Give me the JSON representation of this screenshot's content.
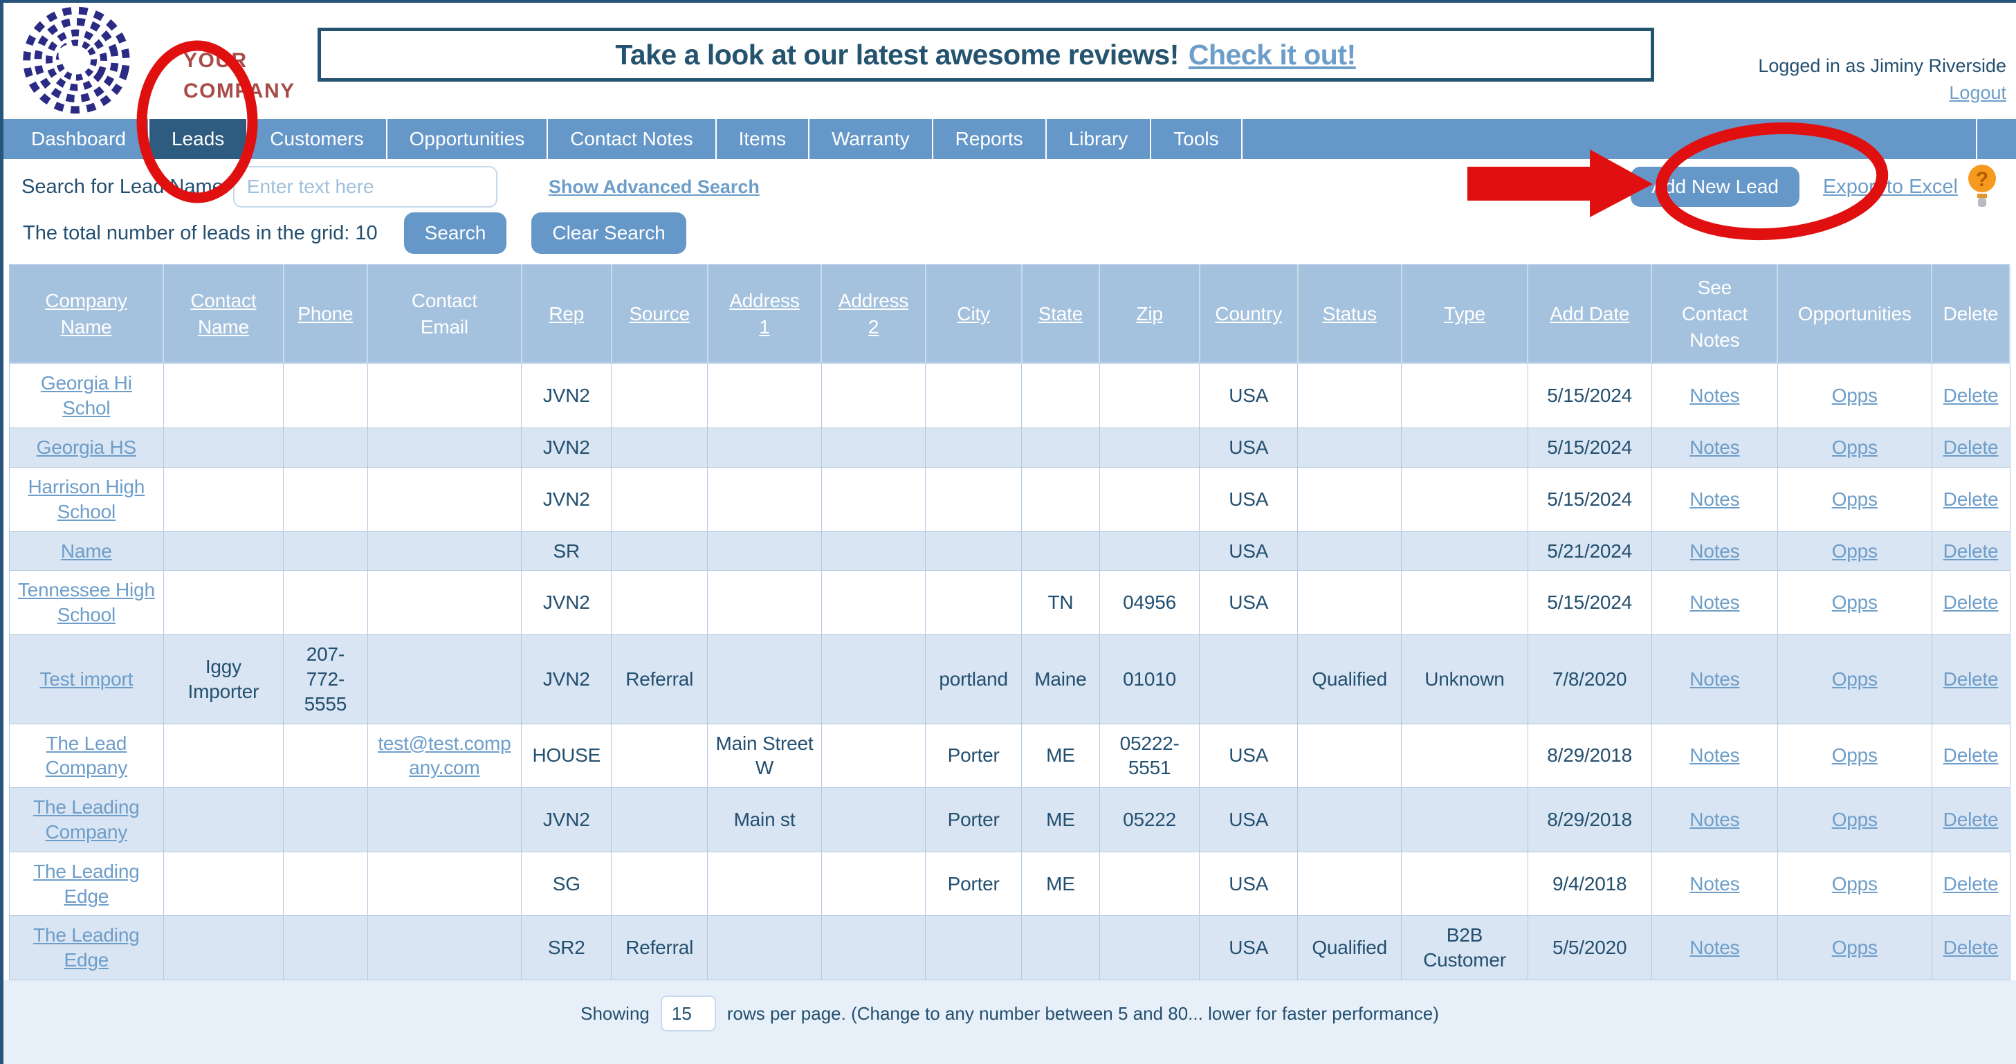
{
  "page": {
    "logo": {
      "company_line1": "YOUR",
      "company_line2": "COMPANY"
    },
    "banner": {
      "text": "Take a look at our latest awesome reviews!",
      "link_text": "Check it out!"
    },
    "account": {
      "logged_in_text": "Logged in as Jiminy Riverside",
      "logout_label": "Logout"
    }
  },
  "nav": {
    "tabs": [
      {
        "label": "Dashboard",
        "active": false
      },
      {
        "label": "Leads",
        "active": true
      },
      {
        "label": "Customers",
        "active": false
      },
      {
        "label": "Opportunities",
        "active": false
      },
      {
        "label": "Contact Notes",
        "active": false
      },
      {
        "label": "Items",
        "active": false
      },
      {
        "label": "Warranty",
        "active": false
      },
      {
        "label": "Reports",
        "active": false
      },
      {
        "label": "Library",
        "active": false
      },
      {
        "label": "Tools",
        "active": false
      }
    ]
  },
  "toolbar": {
    "search_label": "Search for Lead Name:",
    "search_placeholder": "Enter text here",
    "advanced_search_label": "Show Advanced Search",
    "add_new_lead_label": "Add New Lead",
    "export_label": "Export to Excel",
    "help_icon_glyph": "?"
  },
  "grid_info": {
    "total_text": "The total number of leads in the grid: 10",
    "search_button_label": "Search",
    "clear_button_label": "Clear Search"
  },
  "table": {
    "columns": [
      {
        "key": "company",
        "label": "Company Name",
        "sortable": true,
        "link": true,
        "width": "7.7%"
      },
      {
        "key": "contact",
        "label": "Contact Name",
        "sortable": true,
        "link": false,
        "width": "6.0%"
      },
      {
        "key": "phone",
        "label": "Phone",
        "sortable": true,
        "link": false,
        "width": "4.2%"
      },
      {
        "key": "email",
        "label": "Contact Email",
        "sortable": false,
        "link": true,
        "width": "7.7%"
      },
      {
        "key": "rep",
        "label": "Rep",
        "sortable": true,
        "link": false,
        "width": "4.5%"
      },
      {
        "key": "source",
        "label": "Source",
        "sortable": true,
        "link": false,
        "width": "4.8%"
      },
      {
        "key": "address1",
        "label": "Address 1",
        "sortable": true,
        "link": false,
        "width": "5.7%"
      },
      {
        "key": "address2",
        "label": "Address 2",
        "sortable": true,
        "link": false,
        "width": "5.2%"
      },
      {
        "key": "city",
        "label": "City",
        "sortable": true,
        "link": false,
        "width": "4.8%"
      },
      {
        "key": "state",
        "label": "State",
        "sortable": true,
        "link": false,
        "width": "3.9%"
      },
      {
        "key": "zip",
        "label": "Zip",
        "sortable": true,
        "link": false,
        "width": "5.0%"
      },
      {
        "key": "country",
        "label": "Country",
        "sortable": true,
        "link": false,
        "width": "4.9%"
      },
      {
        "key": "status",
        "label": "Status",
        "sortable": true,
        "link": false,
        "width": "5.2%"
      },
      {
        "key": "type",
        "label": "Type",
        "sortable": true,
        "link": false,
        "width": "6.3%"
      },
      {
        "key": "add_date",
        "label": "Add Date",
        "sortable": true,
        "link": false,
        "width": "6.2%"
      },
      {
        "key": "notes",
        "label": "See Contact Notes",
        "sortable": false,
        "link": true,
        "width": "6.3%"
      },
      {
        "key": "opps",
        "label": "Opportunities",
        "sortable": false,
        "link": true,
        "width": "7.7%"
      },
      {
        "key": "del",
        "label": "Delete",
        "sortable": false,
        "link": true,
        "width": "3.9%"
      }
    ],
    "rows": [
      {
        "company": "Georgia Hi Schol",
        "contact": "",
        "phone": "",
        "email": "",
        "rep": "JVN2",
        "source": "",
        "address1": "",
        "address2": "",
        "city": "",
        "state": "",
        "zip": "",
        "country": "USA",
        "status": "",
        "type": "",
        "add_date": "5/15/2024",
        "notes": "Notes",
        "opps": "Opps",
        "del": "Delete"
      },
      {
        "company": "Georgia HS",
        "contact": "",
        "phone": "",
        "email": "",
        "rep": "JVN2",
        "source": "",
        "address1": "",
        "address2": "",
        "city": "",
        "state": "",
        "zip": "",
        "country": "USA",
        "status": "",
        "type": "",
        "add_date": "5/15/2024",
        "notes": "Notes",
        "opps": "Opps",
        "del": "Delete"
      },
      {
        "company": "Harrison High School",
        "contact": "",
        "phone": "",
        "email": "",
        "rep": "JVN2",
        "source": "",
        "address1": "",
        "address2": "",
        "city": "",
        "state": "",
        "zip": "",
        "country": "USA",
        "status": "",
        "type": "",
        "add_date": "5/15/2024",
        "notes": "Notes",
        "opps": "Opps",
        "del": "Delete"
      },
      {
        "company": "Name",
        "contact": "",
        "phone": "",
        "email": "",
        "rep": "SR",
        "source": "",
        "address1": "",
        "address2": "",
        "city": "",
        "state": "",
        "zip": "",
        "country": "USA",
        "status": "",
        "type": "",
        "add_date": "5/21/2024",
        "notes": "Notes",
        "opps": "Opps",
        "del": "Delete"
      },
      {
        "company": "Tennessee High School",
        "contact": "",
        "phone": "",
        "email": "",
        "rep": "JVN2",
        "source": "",
        "address1": "",
        "address2": "",
        "city": "",
        "state": "TN",
        "zip": "04956",
        "country": "USA",
        "status": "",
        "type": "",
        "add_date": "5/15/2024",
        "notes": "Notes",
        "opps": "Opps",
        "del": "Delete"
      },
      {
        "company": "Test import",
        "contact": "Iggy Importer",
        "phone": "207-772-5555",
        "email": "",
        "rep": "JVN2",
        "source": "Referral",
        "address1": "",
        "address2": "",
        "city": "portland",
        "state": "Maine",
        "zip": "01010",
        "country": "",
        "status": "Qualified",
        "type": "Unknown",
        "add_date": "7/8/2020",
        "notes": "Notes",
        "opps": "Opps",
        "del": "Delete"
      },
      {
        "company": "The Lead Company",
        "contact": "",
        "phone": "",
        "email": "test@test.company.com",
        "rep": "HOUSE",
        "source": "",
        "address1": "Main Street W",
        "address2": "",
        "city": "Porter",
        "state": "ME",
        "zip": "05222-5551",
        "country": "USA",
        "status": "",
        "type": "",
        "add_date": "8/29/2018",
        "notes": "Notes",
        "opps": "Opps",
        "del": "Delete"
      },
      {
        "company": "The Leading Company",
        "contact": "",
        "phone": "",
        "email": "",
        "rep": "JVN2",
        "source": "",
        "address1": "Main st",
        "address2": "",
        "city": "Porter",
        "state": "ME",
        "zip": "05222",
        "country": "USA",
        "status": "",
        "type": "",
        "add_date": "8/29/2018",
        "notes": "Notes",
        "opps": "Opps",
        "del": "Delete"
      },
      {
        "company": "The Leading Edge",
        "contact": "",
        "phone": "",
        "email": "",
        "rep": "SG",
        "source": "",
        "address1": "",
        "address2": "",
        "city": "Porter",
        "state": "ME",
        "zip": "",
        "country": "USA",
        "status": "",
        "type": "",
        "add_date": "9/4/2018",
        "notes": "Notes",
        "opps": "Opps",
        "del": "Delete"
      },
      {
        "company": "The Leading Edge",
        "contact": "",
        "phone": "",
        "email": "",
        "rep": "SR2",
        "source": "Referral",
        "address1": "",
        "address2": "",
        "city": "",
        "state": "",
        "zip": "",
        "country": "USA",
        "status": "Qualified",
        "type": "B2B Customer",
        "add_date": "5/5/2020",
        "notes": "Notes",
        "opps": "Opps",
        "del": "Delete"
      }
    ]
  },
  "footer": {
    "showing_label": "Showing",
    "rows_per_page_value": "15",
    "suffix_text": "rows per page. (Change to any number between 5 and 80... lower for faster performance)"
  },
  "colors": {
    "nav_blue": "#6597c8",
    "active_tab": "#2d5c80",
    "link_blue": "#6d9dc9",
    "navy_text": "#234f70",
    "table_header": "#a4c1de",
    "alt_row": "#d9e5f2",
    "annotation_red": "#e11010",
    "footer_band": "#e7f0f8",
    "help_icon_orange": "#f5991f",
    "logo_text_red": "#a84c48"
  }
}
